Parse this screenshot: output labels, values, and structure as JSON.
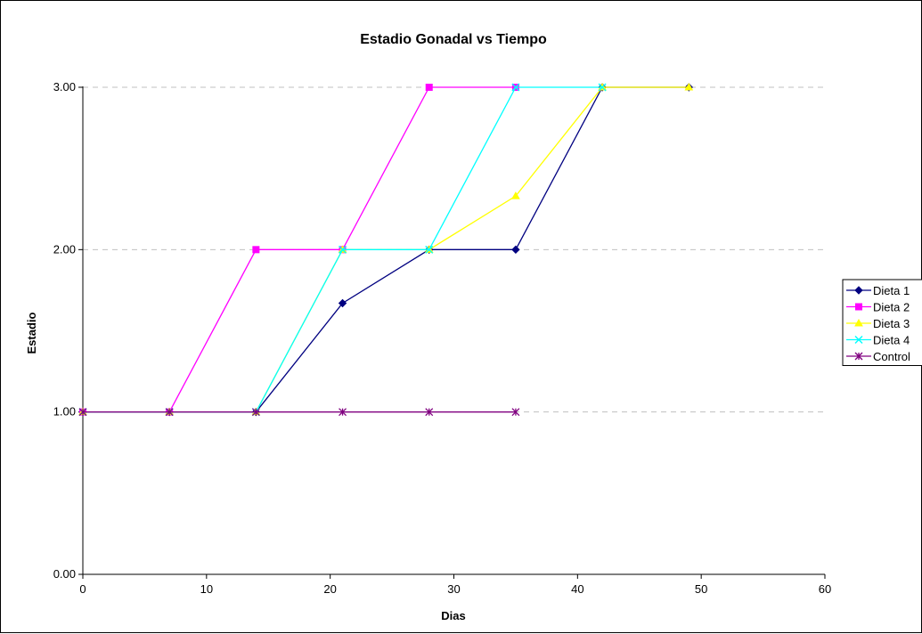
{
  "chart_data": {
    "type": "line",
    "title": "Estadio Gonadal vs Tiempo",
    "xlabel": "Dias",
    "ylabel": "Estadio",
    "xlim": [
      0,
      60
    ],
    "ylim": [
      0,
      3
    ],
    "xticks": [
      0,
      10,
      20,
      30,
      40,
      50,
      60
    ],
    "yticks": [
      0,
      1,
      2,
      3
    ],
    "xtick_labels": [
      "0",
      "10",
      "20",
      "30",
      "40",
      "50",
      "60"
    ],
    "ytick_labels": [
      "0.00",
      "1.00",
      "2.00",
      "3.00"
    ],
    "grid": "horizontal dashed",
    "legend_position": "right",
    "series": [
      {
        "name": "Dieta 1",
        "color": "#000080",
        "marker": "diamond",
        "x": [
          0,
          7,
          14,
          21,
          28,
          35,
          42,
          49
        ],
        "y": [
          1,
          1,
          1,
          1.67,
          2,
          2,
          3,
          3
        ]
      },
      {
        "name": "Dieta 2",
        "color": "#FF00FF",
        "marker": "square",
        "x": [
          0,
          7,
          14,
          21,
          28,
          35
        ],
        "y": [
          1,
          1,
          2,
          2,
          3,
          3
        ]
      },
      {
        "name": "Dieta 3",
        "color": "#FFFF00",
        "marker": "triangle",
        "x": [
          0,
          7,
          14,
          21,
          28,
          35,
          42,
          49
        ],
        "y": [
          1,
          1,
          1,
          2,
          2,
          2.33,
          3,
          3
        ]
      },
      {
        "name": "Dieta 4",
        "color": "#00FFFF",
        "marker": "x",
        "x": [
          0,
          7,
          14,
          21,
          28,
          35,
          42
        ],
        "y": [
          1,
          1,
          1,
          2,
          2,
          3,
          3
        ]
      },
      {
        "name": "Control",
        "color": "#800080",
        "marker": "star",
        "x": [
          0,
          7,
          14,
          21,
          28,
          35
        ],
        "y": [
          1,
          1,
          1,
          1,
          1,
          1
        ]
      }
    ]
  }
}
